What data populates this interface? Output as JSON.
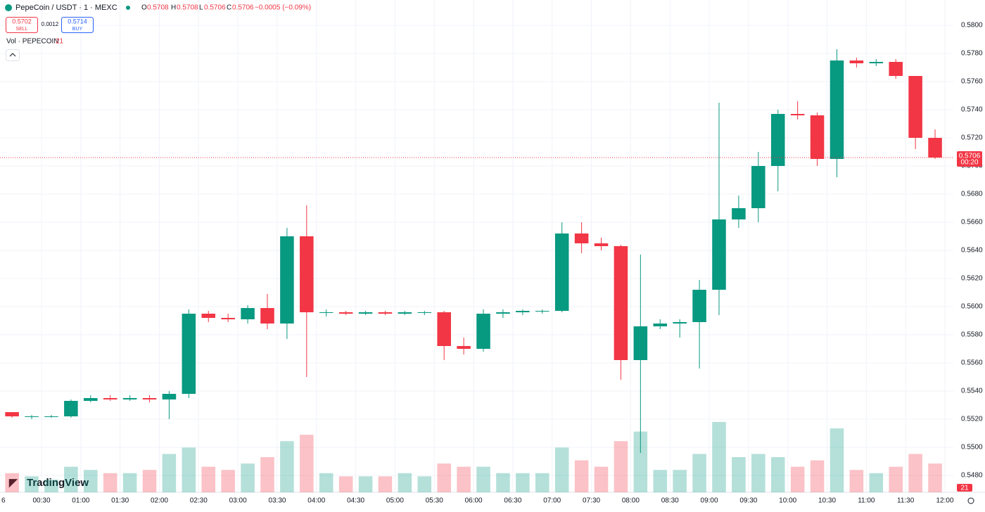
{
  "header": {
    "symbol": "PepeCoin / USDT · 1 · MEXC",
    "open_label": "O",
    "open": "0.5708",
    "high_label": "H",
    "high": "0.5708",
    "low_label": "L",
    "low": "0.5706",
    "close_label": "C",
    "close": "0.5706",
    "change": "−0.0005 (−0.09%)",
    "sell_price": "0.5702",
    "sell_label": "SELL",
    "spread": "0.0012",
    "buy_price": "0.5714",
    "buy_label": "BUY",
    "volume_title": "Vol · PEPECOIN",
    "volume_value": "21",
    "brand": "TradingView",
    "edge_label": "6",
    "countdown": "00:20"
  },
  "chart_data": {
    "type": "candlestick",
    "up_color": "#089981",
    "down_color": "#f23645",
    "x": [
      "00:00",
      "00:15",
      "00:30",
      "00:45",
      "01:00",
      "01:15",
      "01:30",
      "01:45",
      "02:00",
      "02:15",
      "02:30",
      "02:45",
      "03:00",
      "03:15",
      "03:30",
      "03:45",
      "04:00",
      "04:15",
      "04:30",
      "04:45",
      "05:00",
      "05:15",
      "05:30",
      "05:45",
      "06:00",
      "06:15",
      "06:30",
      "06:45",
      "07:00",
      "07:15",
      "07:30",
      "07:45",
      "08:00",
      "08:15",
      "08:30",
      "08:45",
      "09:00",
      "09:15",
      "09:30",
      "09:45",
      "10:00",
      "10:15",
      "10:30",
      "10:45",
      "11:00",
      "11:15",
      "11:30",
      "11:45"
    ],
    "open": [
      0.5525,
      0.5522,
      0.5522,
      0.5522,
      0.5533,
      0.5535,
      0.5534,
      0.5535,
      0.5534,
      0.5538,
      0.5595,
      0.5592,
      0.5591,
      0.5599,
      0.5588,
      0.565,
      0.5596,
      0.5596,
      0.5595,
      0.5596,
      0.5595,
      0.5596,
      0.5596,
      0.5572,
      0.557,
      0.5595,
      0.5596,
      0.5597,
      0.5597,
      0.5652,
      0.5645,
      0.5643,
      0.5562,
      0.5586,
      0.5588,
      0.5589,
      0.5612,
      0.5662,
      0.567,
      0.57,
      0.5737,
      0.5736,
      0.5705,
      0.5775,
      0.5773,
      0.5774,
      0.5764,
      0.572
    ],
    "high": [
      0.5525,
      0.5523,
      0.5523,
      0.5534,
      0.5537,
      0.5537,
      0.5537,
      0.5537,
      0.554,
      0.5598,
      0.5597,
      0.5595,
      0.5601,
      0.5609,
      0.5656,
      0.5672,
      0.5598,
      0.5597,
      0.5597,
      0.5597,
      0.5597,
      0.5597,
      0.5597,
      0.5578,
      0.5598,
      0.5598,
      0.5598,
      0.5598,
      0.566,
      0.566,
      0.5649,
      0.5644,
      0.5637,
      0.5591,
      0.5591,
      0.5619,
      0.5745,
      0.5679,
      0.571,
      0.574,
      0.5746,
      0.5738,
      0.5783,
      0.5777,
      0.5776,
      0.5776,
      0.5764,
      0.5726
    ],
    "low": [
      0.5521,
      0.552,
      0.5521,
      0.5521,
      0.5532,
      0.5533,
      0.5533,
      0.5532,
      0.552,
      0.5535,
      0.5589,
      0.5589,
      0.5588,
      0.5584,
      0.5577,
      0.555,
      0.5593,
      0.5594,
      0.5594,
      0.5594,
      0.5594,
      0.5594,
      0.5562,
      0.5566,
      0.5568,
      0.5592,
      0.5594,
      0.5595,
      0.5596,
      0.5638,
      0.564,
      0.5548,
      0.5496,
      0.5584,
      0.5578,
      0.5556,
      0.5594,
      0.5656,
      0.566,
      0.5682,
      0.5733,
      0.57,
      0.5692,
      0.577,
      0.5771,
      0.5762,
      0.5712,
      0.5705
    ],
    "close": [
      0.5522,
      0.5522,
      0.5522,
      0.5533,
      0.5535,
      0.5534,
      0.5535,
      0.5534,
      0.5538,
      0.5595,
      0.5592,
      0.5591,
      0.5599,
      0.5588,
      0.565,
      0.5596,
      0.5596,
      0.5595,
      0.5596,
      0.5595,
      0.5596,
      0.5596,
      0.5572,
      0.557,
      0.5595,
      0.5596,
      0.5597,
      0.5597,
      0.5652,
      0.5645,
      0.5643,
      0.5562,
      0.5586,
      0.5588,
      0.5589,
      0.5612,
      0.5662,
      0.567,
      0.57,
      0.5737,
      0.5736,
      0.5705,
      0.5775,
      0.5773,
      0.5774,
      0.5764,
      0.572,
      0.5706
    ],
    "volume": [
      30,
      25,
      20,
      40,
      35,
      30,
      30,
      35,
      60,
      70,
      40,
      35,
      45,
      55,
      80,
      90,
      30,
      25,
      25,
      25,
      30,
      25,
      45,
      40,
      40,
      30,
      30,
      30,
      70,
      50,
      40,
      80,
      95,
      35,
      35,
      60,
      110,
      55,
      60,
      55,
      40,
      50,
      100,
      35,
      30,
      40,
      60,
      45
    ],
    "last_price": {
      "value": 0.5706,
      "label": "0.5706"
    },
    "ylim": [
      0.548,
      0.58
    ],
    "yticks": [
      {
        "value": 0.58,
        "label": "0.5800"
      },
      {
        "value": 0.578,
        "label": "0.5780"
      },
      {
        "value": 0.576,
        "label": "0.5760"
      },
      {
        "value": 0.574,
        "label": "0.5740"
      },
      {
        "value": 0.572,
        "label": "0.5720"
      },
      {
        "value": 0.57,
        "label": "0.5700"
      },
      {
        "value": 0.568,
        "label": "0.5680"
      },
      {
        "value": 0.566,
        "label": "0.5660"
      },
      {
        "value": 0.564,
        "label": "0.5640"
      },
      {
        "value": 0.562,
        "label": "0.5620"
      },
      {
        "value": 0.56,
        "label": "0.5600"
      },
      {
        "value": 0.558,
        "label": "0.5580"
      },
      {
        "value": 0.556,
        "label": "0.5560"
      },
      {
        "value": 0.554,
        "label": "0.5540"
      },
      {
        "value": 0.552,
        "label": "0.5520"
      },
      {
        "value": 0.55,
        "label": "0.5500"
      },
      {
        "value": 0.548,
        "label": "0.5480"
      }
    ],
    "xticks": [
      "00:30",
      "01:00",
      "01:30",
      "02:00",
      "02:30",
      "03:00",
      "03:30",
      "04:00",
      "04:30",
      "05:00",
      "05:30",
      "06:00",
      "06:30",
      "07:00",
      "07:30",
      "08:00",
      "08:30",
      "09:00",
      "09:30",
      "10:00",
      "10:30",
      "11:00",
      "11:30",
      "12:00"
    ],
    "grid": true
  }
}
